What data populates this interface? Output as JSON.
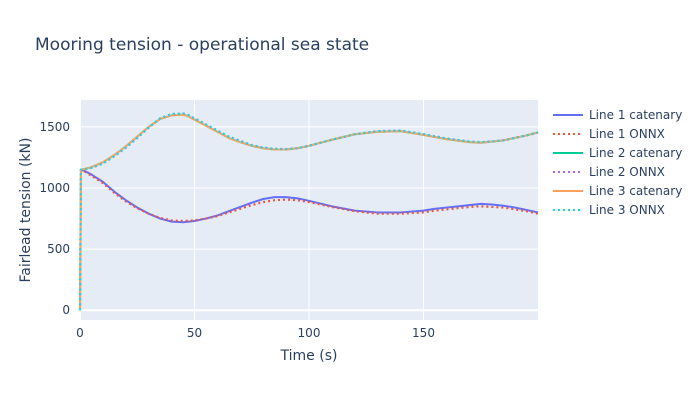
{
  "chart_data": {
    "type": "line",
    "title": "Mooring tension - operational sea state",
    "xlabel": "Time (s)",
    "ylabel": "Fairlead tension (kN)",
    "xlim": [
      0,
      200
    ],
    "ylim": [
      -80,
      1720
    ],
    "xticks": [
      0,
      50,
      100,
      150
    ],
    "yticks": [
      0,
      500,
      1000,
      1500
    ],
    "grid": true,
    "legend_position": "right",
    "plot_bg": "#e5ecf6",
    "series": [
      {
        "name": "Line 1 catenary",
        "color": "#636efa",
        "dash": "solid",
        "x": [
          0,
          2,
          5,
          10,
          15,
          20,
          25,
          30,
          35,
          40,
          45,
          50,
          55,
          60,
          65,
          70,
          75,
          80,
          85,
          90,
          95,
          100,
          110,
          120,
          130,
          140,
          150,
          155,
          160,
          165,
          170,
          175,
          180,
          185,
          190,
          195,
          200
        ],
        "y": [
          1150,
          1140,
          1110,
          1050,
          970,
          900,
          840,
          790,
          750,
          725,
          720,
          730,
          750,
          775,
          810,
          845,
          880,
          910,
          925,
          925,
          915,
          895,
          850,
          815,
          800,
          800,
          815,
          830,
          840,
          850,
          860,
          870,
          865,
          855,
          840,
          820,
          800
        ]
      },
      {
        "name": "Line 1 ONNX",
        "color": "#ef553b",
        "dash": "dot",
        "x": [
          0,
          2,
          5,
          10,
          15,
          20,
          25,
          30,
          35,
          40,
          45,
          50,
          55,
          60,
          65,
          70,
          75,
          80,
          85,
          90,
          95,
          100,
          110,
          120,
          130,
          140,
          150,
          155,
          160,
          165,
          170,
          175,
          180,
          185,
          190,
          195,
          200
        ],
        "y": [
          1150,
          1135,
          1100,
          1040,
          960,
          890,
          835,
          790,
          755,
          735,
          730,
          735,
          750,
          770,
          800,
          830,
          860,
          885,
          900,
          905,
          900,
          885,
          845,
          810,
          790,
          790,
          800,
          815,
          825,
          835,
          845,
          850,
          845,
          840,
          825,
          810,
          790
        ]
      },
      {
        "name": "Line 2 catenary",
        "color": "#00cc96",
        "dash": "solid",
        "x": [
          0,
          0.4,
          2,
          5,
          10,
          15,
          20,
          25,
          30,
          35,
          40,
          45,
          47,
          50,
          55,
          60,
          65,
          70,
          75,
          80,
          85,
          90,
          95,
          100,
          110,
          120,
          130,
          140,
          150,
          160,
          170,
          175,
          180,
          185,
          190,
          195,
          200
        ],
        "y": [
          0,
          1150,
          1155,
          1170,
          1210,
          1270,
          1340,
          1420,
          1500,
          1565,
          1595,
          1600,
          1590,
          1560,
          1510,
          1460,
          1410,
          1375,
          1345,
          1325,
          1315,
          1315,
          1325,
          1345,
          1395,
          1440,
          1460,
          1465,
          1435,
          1400,
          1375,
          1370,
          1380,
          1390,
          1410,
          1430,
          1455
        ]
      },
      {
        "name": "Line 2 ONNX",
        "color": "#ab63fa",
        "dash": "dot",
        "x": [
          0,
          0.4,
          2,
          5,
          10,
          15,
          20,
          25,
          30,
          35,
          40,
          45,
          47,
          50,
          55,
          60,
          65,
          70,
          75,
          80,
          85,
          90,
          95,
          100,
          110,
          120,
          130,
          140,
          150,
          160,
          170,
          175,
          180,
          185,
          190,
          195,
          200
        ],
        "y": [
          0,
          1150,
          1155,
          1165,
          1200,
          1260,
          1330,
          1410,
          1495,
          1570,
          1605,
          1610,
          1600,
          1570,
          1520,
          1470,
          1420,
          1385,
          1350,
          1330,
          1320,
          1318,
          1325,
          1345,
          1395,
          1440,
          1465,
          1470,
          1440,
          1405,
          1380,
          1375,
          1380,
          1390,
          1410,
          1430,
          1455
        ]
      },
      {
        "name": "Line 3 catenary",
        "color": "#ffa15a",
        "dash": "solid",
        "x": [
          0,
          0.4,
          2,
          5,
          10,
          15,
          20,
          25,
          30,
          35,
          40,
          45,
          47,
          50,
          55,
          60,
          65,
          70,
          75,
          80,
          85,
          90,
          95,
          100,
          110,
          120,
          130,
          140,
          150,
          160,
          170,
          175,
          180,
          185,
          190,
          195,
          200
        ],
        "y": [
          0,
          1150,
          1155,
          1170,
          1210,
          1270,
          1340,
          1420,
          1500,
          1565,
          1595,
          1600,
          1590,
          1560,
          1510,
          1460,
          1410,
          1375,
          1345,
          1325,
          1315,
          1315,
          1325,
          1345,
          1395,
          1440,
          1460,
          1465,
          1435,
          1400,
          1375,
          1370,
          1380,
          1390,
          1410,
          1430,
          1455
        ]
      },
      {
        "name": "Line 3 ONNX",
        "color": "#19d3f3",
        "dash": "dot",
        "x": [
          0,
          0.4,
          2,
          5,
          10,
          15,
          20,
          25,
          30,
          35,
          40,
          45,
          47,
          50,
          55,
          60,
          65,
          70,
          75,
          80,
          85,
          90,
          95,
          100,
          110,
          120,
          130,
          140,
          150,
          160,
          170,
          175,
          180,
          185,
          190,
          195,
          200
        ],
        "y": [
          0,
          1150,
          1155,
          1165,
          1200,
          1260,
          1330,
          1410,
          1495,
          1570,
          1605,
          1610,
          1600,
          1570,
          1520,
          1470,
          1420,
          1385,
          1350,
          1330,
          1320,
          1318,
          1325,
          1345,
          1395,
          1440,
          1465,
          1470,
          1440,
          1405,
          1380,
          1375,
          1380,
          1390,
          1410,
          1430,
          1455
        ]
      }
    ]
  }
}
